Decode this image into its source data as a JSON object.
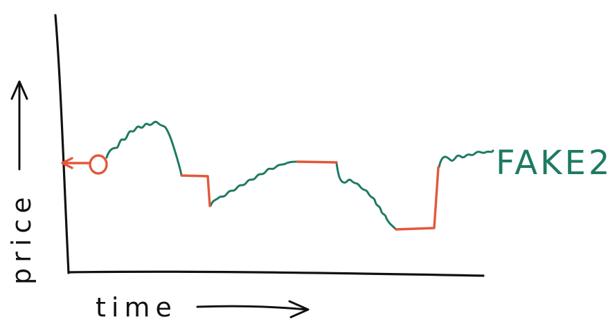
{
  "diagram": {
    "y_axis_label": "price",
    "x_axis_label": "time",
    "series_label": "FAKE2",
    "colors": {
      "axis": "#111111",
      "up_trend": "#1e7a63",
      "flat_segment": "#e4573a",
      "marker": "#e4573a",
      "label": "#1e7a63"
    }
  }
}
